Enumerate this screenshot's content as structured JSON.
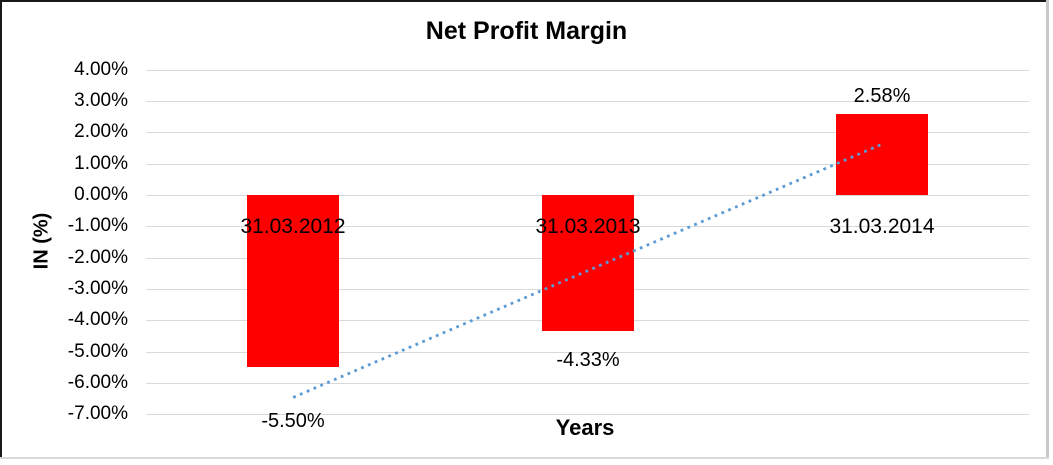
{
  "chart_data": {
    "type": "bar",
    "title": "Net Profit Margin",
    "xlabel": "Years",
    "ylabel": "IN (%)",
    "categories": [
      "31.03.2012",
      "31.03.2013",
      "31.03.2014"
    ],
    "values": [
      -5.5,
      -4.33,
      2.58
    ],
    "data_labels": [
      "-5.50%",
      "-4.33%",
      "2.58%"
    ],
    "y_ticks": [
      {
        "value": 4,
        "label": "4.00%"
      },
      {
        "value": 3,
        "label": "3.00%"
      },
      {
        "value": 2,
        "label": "2.00%"
      },
      {
        "value": 1,
        "label": "1.00%"
      },
      {
        "value": 0,
        "label": "0.00%"
      },
      {
        "value": -1,
        "label": "-1.00%"
      },
      {
        "value": -2,
        "label": "-2.00%"
      },
      {
        "value": -3,
        "label": "-3.00%"
      },
      {
        "value": -4,
        "label": "-4.00%"
      },
      {
        "value": -5,
        "label": "-5.00%"
      },
      {
        "value": -6,
        "label": "-6.00%"
      },
      {
        "value": -7,
        "label": "-7.00%"
      }
    ],
    "ylim": [
      -7,
      4
    ],
    "grid": true,
    "legend": false,
    "colors": {
      "bar": "#FF0000",
      "gridline": "#D9D9D9",
      "text": "#000000",
      "trendline": "#5B9BD5",
      "background": "#FFFFFF"
    },
    "trendline": {
      "type": "linear",
      "style": "dotted",
      "start_value": -6.46,
      "end_value": 1.62
    }
  }
}
